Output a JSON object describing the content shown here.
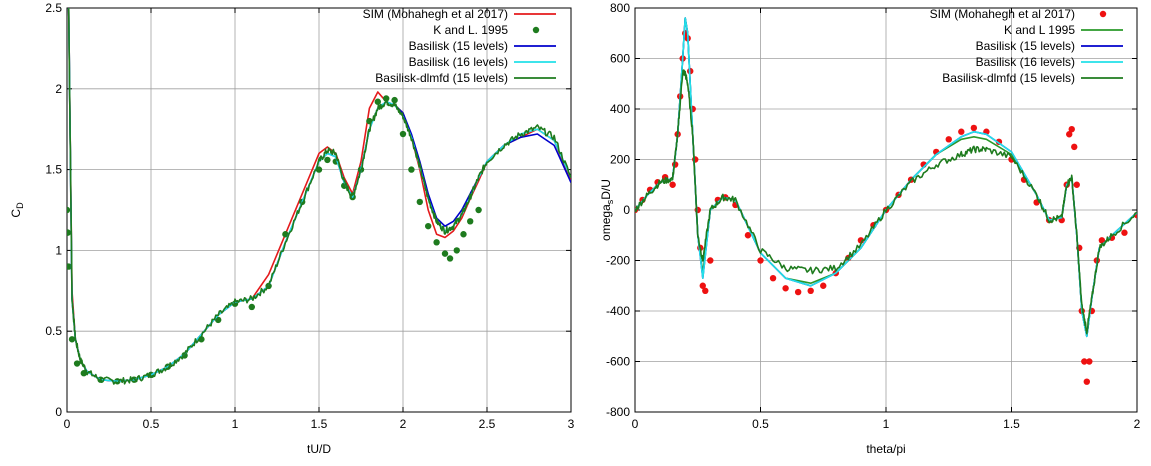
{
  "chart_data": [
    {
      "type": "line",
      "title": "",
      "xlabel": "tU/D",
      "ylabel_main": "C",
      "ylabel_sub": "D",
      "xlim": [
        0,
        3
      ],
      "ylim": [
        0,
        2.5
      ],
      "xticks": [
        "0",
        "0.5",
        "1",
        "1.5",
        "2",
        "2.5",
        "3"
      ],
      "xtick_values": [
        0,
        0.5,
        1,
        1.5,
        2,
        2.5,
        3
      ],
      "yticks": [
        "0",
        "0.5",
        "1",
        "1.5",
        "2",
        "2.5"
      ],
      "ytick_values": [
        0,
        0.5,
        1,
        1.5,
        2,
        2.5
      ],
      "grid": true,
      "legend_position": "top-right",
      "series": [
        {
          "name": "SIM (Mohahegh et al 2017)",
          "style": "line",
          "color": "#e41a1c",
          "x": [
            0.01,
            0.03,
            0.05,
            0.08,
            0.12,
            0.2,
            0.3,
            0.4,
            0.5,
            0.6,
            0.7,
            0.8,
            0.9,
            1.0,
            1.1,
            1.2,
            1.3,
            1.4,
            1.5,
            1.55,
            1.6,
            1.65,
            1.7,
            1.75,
            1.8,
            1.85,
            1.9,
            1.95,
            2.0,
            2.05,
            2.1,
            2.15,
            2.2,
            2.25,
            2.3,
            2.35,
            2.4,
            2.45,
            2.5,
            2.6,
            2.7,
            2.8,
            2.9,
            3.0
          ],
          "y": [
            2.5,
            0.75,
            0.45,
            0.32,
            0.25,
            0.2,
            0.19,
            0.2,
            0.23,
            0.28,
            0.36,
            0.48,
            0.6,
            0.68,
            0.7,
            0.85,
            1.1,
            1.35,
            1.6,
            1.64,
            1.6,
            1.45,
            1.35,
            1.55,
            1.88,
            1.98,
            1.92,
            1.9,
            1.85,
            1.7,
            1.5,
            1.25,
            1.1,
            1.08,
            1.12,
            1.2,
            1.32,
            1.43,
            1.55,
            1.65,
            1.7,
            1.75,
            1.68,
            1.43
          ]
        },
        {
          "name": "K and L. 1995",
          "style": "points",
          "color": "#1e7b1e",
          "x": [
            0.0,
            0.005,
            0.01,
            0.03,
            0.06,
            0.1,
            0.2,
            0.3,
            0.4,
            0.5,
            0.6,
            0.7,
            0.8,
            0.9,
            1.0,
            1.1,
            1.2,
            1.3,
            1.4,
            1.5,
            1.55,
            1.6,
            1.65,
            1.7,
            1.75,
            1.8,
            1.85,
            1.9,
            1.95,
            2.0,
            2.05,
            2.1,
            2.15,
            2.2,
            2.25,
            2.28,
            2.32,
            2.36,
            2.4,
            2.45
          ],
          "y": [
            1.25,
            1.11,
            0.9,
            0.45,
            0.3,
            0.24,
            0.2,
            0.19,
            0.2,
            0.23,
            0.28,
            0.35,
            0.45,
            0.57,
            0.67,
            0.65,
            0.78,
            1.1,
            1.3,
            1.5,
            1.56,
            1.55,
            1.4,
            1.33,
            1.5,
            1.8,
            1.92,
            1.94,
            1.93,
            1.72,
            1.5,
            1.3,
            1.15,
            1.05,
            0.98,
            0.95,
            1.0,
            1.1,
            1.18,
            1.25
          ]
        },
        {
          "name": "Basilisk (15 levels)",
          "style": "line",
          "color": "#0000cc",
          "x": [
            0.01,
            0.03,
            0.05,
            0.08,
            0.12,
            0.2,
            0.3,
            0.4,
            0.5,
            0.6,
            0.7,
            0.8,
            0.9,
            1.0,
            1.1,
            1.2,
            1.3,
            1.4,
            1.5,
            1.55,
            1.6,
            1.65,
            1.7,
            1.75,
            1.8,
            1.85,
            1.9,
            1.95,
            2.0,
            2.05,
            2.1,
            2.15,
            2.2,
            2.25,
            2.3,
            2.35,
            2.4,
            2.45,
            2.5,
            2.6,
            2.7,
            2.8,
            2.9,
            3.0
          ],
          "y": [
            2.5,
            0.7,
            0.45,
            0.32,
            0.25,
            0.2,
            0.19,
            0.2,
            0.23,
            0.28,
            0.36,
            0.48,
            0.6,
            0.68,
            0.7,
            0.78,
            1.05,
            1.3,
            1.55,
            1.6,
            1.58,
            1.42,
            1.33,
            1.5,
            1.75,
            1.88,
            1.92,
            1.9,
            1.85,
            1.72,
            1.55,
            1.35,
            1.2,
            1.15,
            1.18,
            1.25,
            1.35,
            1.45,
            1.55,
            1.65,
            1.7,
            1.72,
            1.65,
            1.42
          ]
        },
        {
          "name": "Basilisk (16 levels)",
          "style": "line",
          "color": "#22e0e8",
          "x": [
            0.01,
            0.03,
            0.05,
            0.08,
            0.12,
            0.2,
            0.3,
            0.4,
            0.5,
            0.6,
            0.7,
            0.8,
            0.9,
            1.0,
            1.1,
            1.2,
            1.3,
            1.4,
            1.5,
            1.55,
            1.6,
            1.65,
            1.7,
            1.75,
            1.8,
            1.85,
            1.9,
            1.95,
            2.0,
            2.05,
            2.1,
            2.15,
            2.2,
            2.25,
            2.3,
            2.35,
            2.4,
            2.45,
            2.5,
            2.6,
            2.7,
            2.8,
            2.9,
            3.0
          ],
          "y": [
            2.5,
            0.7,
            0.45,
            0.32,
            0.25,
            0.2,
            0.19,
            0.2,
            0.23,
            0.28,
            0.36,
            0.48,
            0.6,
            0.68,
            0.7,
            0.78,
            1.05,
            1.3,
            1.55,
            1.6,
            1.58,
            1.42,
            1.33,
            1.5,
            1.75,
            1.88,
            1.92,
            1.9,
            1.83,
            1.7,
            1.52,
            1.32,
            1.18,
            1.12,
            1.15,
            1.22,
            1.33,
            1.45,
            1.55,
            1.65,
            1.72,
            1.75,
            1.68,
            1.45
          ]
        },
        {
          "name": "Basilisk-dlmfd (15 levels)",
          "style": "line",
          "color": "#1e7b1e",
          "noisy": true,
          "x": [
            0.01,
            0.03,
            0.05,
            0.08,
            0.12,
            0.2,
            0.3,
            0.4,
            0.5,
            0.6,
            0.7,
            0.8,
            0.9,
            1.0,
            1.1,
            1.2,
            1.3,
            1.4,
            1.5,
            1.55,
            1.6,
            1.65,
            1.7,
            1.75,
            1.8,
            1.85,
            1.9,
            1.95,
            2.0,
            2.05,
            2.1,
            2.15,
            2.2,
            2.25,
            2.3,
            2.35,
            2.4,
            2.45,
            2.5,
            2.6,
            2.7,
            2.8,
            2.9,
            3.0
          ],
          "y": [
            2.5,
            0.7,
            0.45,
            0.32,
            0.25,
            0.2,
            0.19,
            0.2,
            0.23,
            0.28,
            0.36,
            0.48,
            0.6,
            0.68,
            0.7,
            0.78,
            1.05,
            1.3,
            1.55,
            1.62,
            1.6,
            1.42,
            1.33,
            1.5,
            1.75,
            1.88,
            1.92,
            1.9,
            1.83,
            1.7,
            1.52,
            1.32,
            1.18,
            1.12,
            1.15,
            1.22,
            1.33,
            1.45,
            1.55,
            1.65,
            1.72,
            1.76,
            1.7,
            1.45
          ]
        }
      ]
    },
    {
      "type": "line",
      "title": "",
      "xlabel": "theta/pi",
      "ylabel_main": "omega",
      "ylabel_sub": "s",
      "ylabel_tail": "D/U",
      "xlim": [
        0,
        2
      ],
      "ylim": [
        -800,
        800
      ],
      "xticks": [
        "0",
        "0.5",
        "1",
        "1.5",
        "2"
      ],
      "xtick_values": [
        0,
        0.5,
        1,
        1.5,
        2
      ],
      "yticks": [
        "-800",
        "-600",
        "-400",
        "-200",
        "0",
        "200",
        "400",
        "600",
        "800"
      ],
      "ytick_values": [
        -800,
        -600,
        -400,
        -200,
        0,
        200,
        400,
        600,
        800
      ],
      "grid": true,
      "legend_position": "top-right",
      "series": [
        {
          "name": "SIM (Mohahegh et al 2017)",
          "style": "points",
          "color": "#ee1111",
          "x": [
            0.0,
            0.03,
            0.06,
            0.09,
            0.12,
            0.15,
            0.16,
            0.17,
            0.18,
            0.19,
            0.2,
            0.21,
            0.22,
            0.23,
            0.24,
            0.25,
            0.26,
            0.27,
            0.28,
            0.3,
            0.33,
            0.36,
            0.4,
            0.45,
            0.5,
            0.55,
            0.6,
            0.65,
            0.7,
            0.75,
            0.8,
            0.85,
            0.9,
            0.95,
            1.0,
            1.05,
            1.1,
            1.15,
            1.2,
            1.25,
            1.3,
            1.35,
            1.4,
            1.45,
            1.5,
            1.55,
            1.6,
            1.65,
            1.7,
            1.72,
            1.73,
            1.74,
            1.75,
            1.76,
            1.77,
            1.78,
            1.79,
            1.8,
            1.81,
            1.82,
            1.84,
            1.86,
            1.9,
            1.95,
            2.0
          ],
          "y": [
            0,
            40,
            80,
            110,
            130,
            100,
            180,
            300,
            450,
            600,
            700,
            680,
            550,
            400,
            200,
            0,
            -150,
            -300,
            -320,
            -200,
            40,
            50,
            20,
            -100,
            -200,
            -270,
            -310,
            -325,
            -320,
            -300,
            -250,
            -190,
            -120,
            -60,
            0,
            60,
            120,
            180,
            230,
            280,
            310,
            325,
            310,
            270,
            200,
            120,
            30,
            -40,
            -40,
            100,
            300,
            320,
            250,
            100,
            -150,
            -400,
            -600,
            -680,
            -600,
            -400,
            -200,
            -120,
            -110,
            -90,
            -20
          ]
        },
        {
          "name": "K and L 1995",
          "style": "line",
          "color": "#2a9a2a",
          "x": [
            0.0,
            0.05,
            0.1,
            0.15,
            0.17,
            0.19,
            0.2,
            0.21,
            0.23,
            0.25,
            0.27,
            0.3,
            0.35,
            0.4,
            0.5,
            0.6,
            0.7,
            0.8,
            0.9,
            1.0,
            1.1,
            1.2,
            1.3,
            1.35,
            1.4,
            1.5,
            1.6,
            1.65,
            1.7,
            1.72,
            1.74,
            1.76,
            1.78,
            1.8,
            1.82,
            1.85,
            1.9,
            2.0
          ],
          "y": [
            0,
            60,
            110,
            120,
            300,
            600,
            760,
            700,
            300,
            -100,
            -250,
            0,
            50,
            40,
            -170,
            -270,
            -290,
            -250,
            -150,
            0,
            120,
            220,
            280,
            290,
            280,
            220,
            60,
            -40,
            -30,
            100,
            130,
            -100,
            -400,
            -500,
            -350,
            -150,
            -100,
            -10
          ]
        },
        {
          "name": "Basilisk (15 levels)",
          "style": "line",
          "color": "#0000cc",
          "x": [
            0.0,
            0.05,
            0.1,
            0.15,
            0.17,
            0.19,
            0.2,
            0.21,
            0.23,
            0.25,
            0.27,
            0.3,
            0.35,
            0.4,
            0.5,
            0.6,
            0.7,
            0.8,
            0.9,
            1.0,
            1.1,
            1.2,
            1.3,
            1.35,
            1.4,
            1.5,
            1.6,
            1.65,
            1.7,
            1.72,
            1.74,
            1.76,
            1.78,
            1.8,
            1.82,
            1.85,
            1.9,
            2.0
          ],
          "y": [
            0,
            60,
            110,
            125,
            300,
            600,
            760,
            700,
            300,
            -100,
            -270,
            0,
            50,
            40,
            -170,
            -270,
            -300,
            -250,
            -150,
            0,
            120,
            220,
            290,
            310,
            300,
            230,
            60,
            -40,
            -30,
            100,
            130,
            -100,
            -400,
            -500,
            -350,
            -150,
            -100,
            -10
          ]
        },
        {
          "name": "Basilisk (16 levels)",
          "style": "line",
          "color": "#22e0e8",
          "x": [
            0.0,
            0.05,
            0.1,
            0.15,
            0.17,
            0.19,
            0.2,
            0.21,
            0.23,
            0.25,
            0.27,
            0.3,
            0.35,
            0.4,
            0.5,
            0.6,
            0.7,
            0.8,
            0.9,
            1.0,
            1.1,
            1.2,
            1.3,
            1.35,
            1.4,
            1.5,
            1.6,
            1.65,
            1.7,
            1.72,
            1.74,
            1.76,
            1.78,
            1.8,
            1.82,
            1.85,
            1.9,
            2.0
          ],
          "y": [
            0,
            60,
            110,
            125,
            300,
            600,
            760,
            700,
            300,
            -100,
            -270,
            0,
            50,
            40,
            -170,
            -270,
            -300,
            -250,
            -150,
            0,
            120,
            220,
            290,
            310,
            300,
            230,
            60,
            -40,
            -30,
            100,
            130,
            -100,
            -400,
            -500,
            -350,
            -150,
            -100,
            -10
          ]
        },
        {
          "name": "Basilisk-dlmfd (15 levels)",
          "style": "line",
          "color": "#1e7b1e",
          "noisy": true,
          "x": [
            0.0,
            0.05,
            0.1,
            0.15,
            0.17,
            0.19,
            0.2,
            0.21,
            0.23,
            0.25,
            0.27,
            0.3,
            0.35,
            0.4,
            0.5,
            0.6,
            0.7,
            0.8,
            0.9,
            1.0,
            1.1,
            1.2,
            1.3,
            1.35,
            1.4,
            1.5,
            1.6,
            1.65,
            1.7,
            1.72,
            1.74,
            1.76,
            1.78,
            1.8,
            1.82,
            1.85,
            1.9,
            2.0
          ],
          "y": [
            0,
            60,
            110,
            125,
            300,
            550,
            540,
            500,
            300,
            -100,
            -200,
            0,
            50,
            40,
            -160,
            -230,
            -240,
            -230,
            -140,
            0,
            110,
            180,
            220,
            240,
            240,
            210,
            60,
            -40,
            -30,
            100,
            130,
            -100,
            -380,
            -480,
            -350,
            -150,
            -100,
            -10
          ]
        }
      ]
    }
  ]
}
